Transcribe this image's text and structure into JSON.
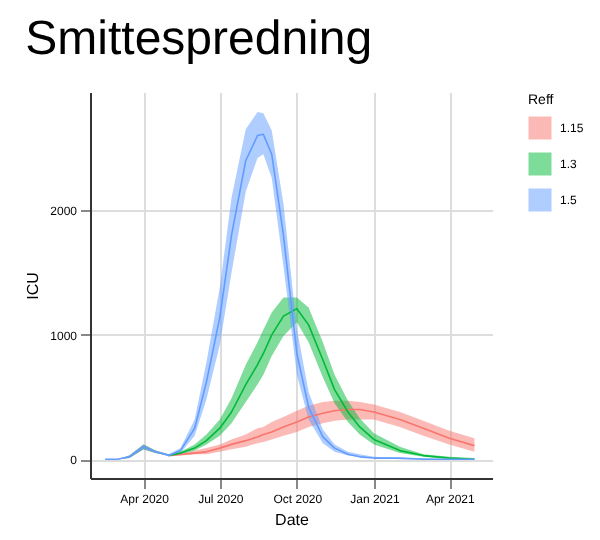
{
  "chart_data": {
    "type": "line",
    "title": "Smittespredning",
    "xlabel": "Date",
    "ylabel": "ICU",
    "legend_title": "Reff",
    "legend": "right",
    "grid": true,
    "x": [
      "2020-02-15",
      "2020-03-01",
      "2020-03-15",
      "2020-04-01",
      "2020-04-15",
      "2020-05-01",
      "2020-05-15",
      "2020-06-01",
      "2020-06-15",
      "2020-07-01",
      "2020-07-15",
      "2020-08-01",
      "2020-08-15",
      "2020-08-22",
      "2020-09-01",
      "2020-09-15",
      "2020-10-01",
      "2020-10-15",
      "2020-11-01",
      "2020-11-15",
      "2020-12-01",
      "2020-12-15",
      "2021-01-01",
      "2021-02-01",
      "2021-03-01",
      "2021-04-01",
      "2021-05-01"
    ],
    "xlim": [
      "2020-01-28",
      "2021-05-22"
    ],
    "xticks": [
      {
        "value": "2020-04-01",
        "label": "Apr 2020"
      },
      {
        "value": "2020-07-01",
        "label": "Jul 2020"
      },
      {
        "value": "2020-10-01",
        "label": "Oct 2020"
      },
      {
        "value": "2021-01-01",
        "label": "Jan 2021"
      },
      {
        "value": "2021-04-01",
        "label": "Apr 2021"
      }
    ],
    "ylim": [
      -150,
      2950
    ],
    "yticks": [
      0,
      1000,
      2000
    ],
    "series": [
      {
        "name": "1.15",
        "color": "#f8766d",
        "values": [
          null,
          null,
          null,
          null,
          null,
          30,
          40,
          50,
          60,
          90,
          120,
          150,
          180,
          200,
          220,
          260,
          300,
          340,
          370,
          390,
          400,
          400,
          380,
          320,
          250,
          170,
          110
        ],
        "lower": [
          0,
          0,
          10,
          80,
          50,
          30,
          30,
          40,
          40,
          60,
          80,
          100,
          130,
          140,
          160,
          190,
          220,
          260,
          290,
          310,
          320,
          320,
          320,
          260,
          190,
          120,
          60
        ],
        "upper": [
          0,
          0,
          30,
          120,
          70,
          40,
          50,
          70,
          90,
          120,
          160,
          200,
          250,
          260,
          300,
          340,
          390,
          430,
          460,
          470,
          470,
          460,
          440,
          380,
          310,
          230,
          170
        ]
      },
      {
        "name": "1.3",
        "color": "#00ba38",
        "values": [
          null,
          null,
          null,
          null,
          null,
          30,
          50,
          90,
          150,
          250,
          380,
          600,
          760,
          850,
          1000,
          1150,
          1210,
          1080,
          800,
          560,
          380,
          260,
          160,
          70,
          30,
          10,
          0
        ],
        "lower": [
          0,
          0,
          10,
          80,
          50,
          30,
          40,
          70,
          120,
          190,
          290,
          460,
          600,
          680,
          830,
          990,
          1100,
          940,
          660,
          450,
          300,
          200,
          120,
          50,
          20,
          0,
          0
        ],
        "upper": [
          0,
          0,
          30,
          120,
          70,
          40,
          60,
          120,
          200,
          320,
          490,
          760,
          940,
          1040,
          1180,
          1300,
          1300,
          1220,
          940,
          680,
          470,
          330,
          210,
          100,
          40,
          20,
          10
        ]
      },
      {
        "name": "1.5",
        "color": "#619cff",
        "values": [
          0,
          0,
          20,
          100,
          60,
          30,
          70,
          250,
          620,
          1140,
          1800,
          2400,
          2600,
          2610,
          2450,
          1800,
          850,
          420,
          180,
          90,
          40,
          20,
          10,
          10,
          0,
          0,
          0
        ],
        "lower": [
          0,
          0,
          10,
          80,
          50,
          30,
          50,
          190,
          480,
          920,
          1500,
          2150,
          2420,
          2450,
          2260,
          1550,
          680,
          320,
          130,
          60,
          30,
          20,
          10,
          0,
          0,
          0,
          0
        ],
        "upper": [
          0,
          0,
          30,
          120,
          70,
          40,
          90,
          320,
          780,
          1380,
          2100,
          2650,
          2790,
          2780,
          2640,
          2050,
          1050,
          540,
          240,
          120,
          60,
          40,
          20,
          10,
          10,
          0,
          0
        ]
      }
    ]
  }
}
